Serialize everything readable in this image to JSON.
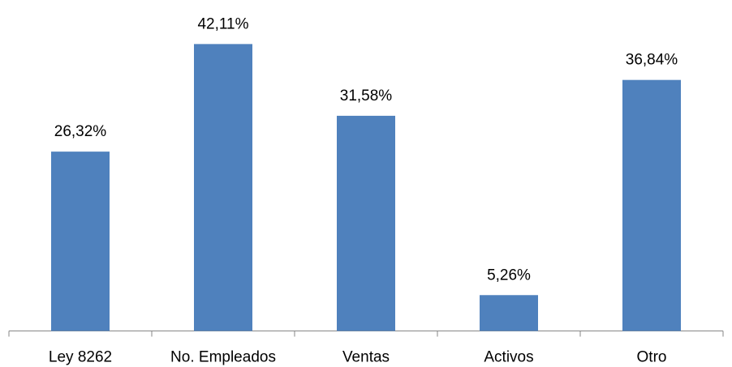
{
  "chart_data": {
    "type": "bar",
    "categories": [
      "Ley 8262",
      "No. Empleados",
      "Ventas",
      "Activos",
      "Otro"
    ],
    "values": [
      26.32,
      42.11,
      31.58,
      5.26,
      36.84
    ],
    "value_labels": [
      "26,32%",
      "42,11%",
      "31,58%",
      "5,26%",
      "36,84%"
    ],
    "color": "#4f81bd"
  }
}
